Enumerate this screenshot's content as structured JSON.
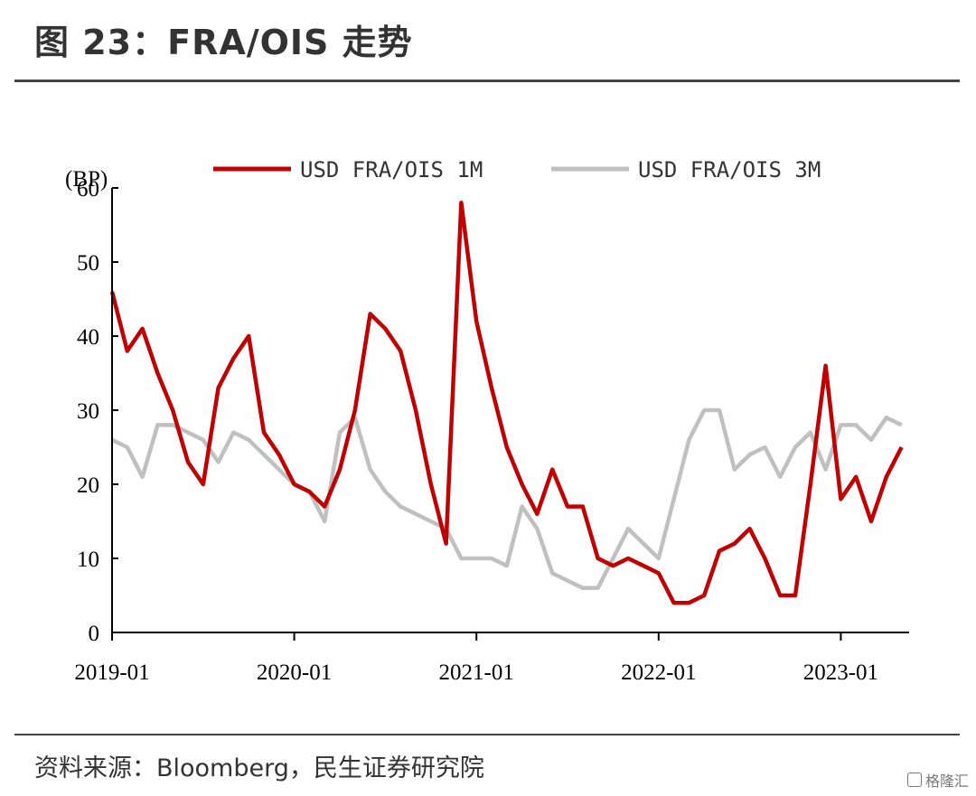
{
  "header": {
    "title": "图 23：FRA/OIS 走势"
  },
  "footer": {
    "source": "资料来源：Bloomberg，民生证券研究院",
    "watermark": "格隆汇"
  },
  "colors": {
    "series_1m": "#c00000",
    "series_3m": "#c0c0c0",
    "axis": "#000000"
  },
  "chart_data": {
    "type": "line",
    "ylabel": "(BP)",
    "ylim": [
      0,
      60
    ],
    "yticks": [
      0,
      10,
      20,
      30,
      40,
      50,
      60
    ],
    "xlim": [
      "2019-01",
      "2023-05"
    ],
    "xticks": [
      "2019-01",
      "2020-01",
      "2021-01",
      "2022-01",
      "2023-01"
    ],
    "legend_position": "top",
    "series": [
      {
        "name": "USD FRA/OIS 1M",
        "points": [
          [
            "2019-01",
            46
          ],
          [
            "2019-02",
            38
          ],
          [
            "2019-03",
            41
          ],
          [
            "2019-04",
            35
          ],
          [
            "2019-05",
            30
          ],
          [
            "2019-06",
            23
          ],
          [
            "2019-07",
            20
          ],
          [
            "2019-08",
            33
          ],
          [
            "2019-09",
            37
          ],
          [
            "2019-10",
            40
          ],
          [
            "2019-11",
            27
          ],
          [
            "2019-12",
            24
          ],
          [
            "2020-01",
            20
          ],
          [
            "2020-02",
            19
          ],
          [
            "2020-03",
            17
          ],
          [
            "2020-04",
            22
          ],
          [
            "2020-05",
            30
          ],
          [
            "2020-06",
            43
          ],
          [
            "2020-07",
            41
          ],
          [
            "2020-08",
            38
          ],
          [
            "2020-09",
            30
          ],
          [
            "2020-10",
            20
          ],
          [
            "2020-11",
            12
          ],
          [
            "2020-12",
            58
          ],
          [
            "2021-01",
            42
          ],
          [
            "2021-02",
            33
          ],
          [
            "2021-03",
            25
          ],
          [
            "2021-04",
            20
          ],
          [
            "2021-05",
            16
          ],
          [
            "2021-06",
            22
          ],
          [
            "2021-07",
            17
          ],
          [
            "2021-08",
            17
          ],
          [
            "2021-09",
            10
          ],
          [
            "2021-10",
            9
          ],
          [
            "2021-11",
            10
          ],
          [
            "2021-12",
            9
          ],
          [
            "2022-01",
            8
          ],
          [
            "2022-02",
            4
          ],
          [
            "2022-03",
            4
          ],
          [
            "2022-04",
            5
          ],
          [
            "2022-05",
            11
          ],
          [
            "2022-06",
            12
          ],
          [
            "2022-07",
            14
          ],
          [
            "2022-08",
            10
          ],
          [
            "2022-09",
            5
          ],
          [
            "2022-10",
            5
          ],
          [
            "2022-11",
            20
          ],
          [
            "2022-12",
            36
          ],
          [
            "2023-01",
            18
          ],
          [
            "2023-02",
            21
          ],
          [
            "2023-03",
            15
          ],
          [
            "2023-04",
            21
          ],
          [
            "2023-05",
            25
          ]
        ]
      },
      {
        "name": "USD FRA/OIS 3M",
        "points": [
          [
            "2019-01",
            26
          ],
          [
            "2019-02",
            25
          ],
          [
            "2019-03",
            21
          ],
          [
            "2019-04",
            28
          ],
          [
            "2019-05",
            28
          ],
          [
            "2019-06",
            27
          ],
          [
            "2019-07",
            26
          ],
          [
            "2019-08",
            23
          ],
          [
            "2019-09",
            27
          ],
          [
            "2019-10",
            26
          ],
          [
            "2019-11",
            24
          ],
          [
            "2019-12",
            22
          ],
          [
            "2020-01",
            20
          ],
          [
            "2020-02",
            19
          ],
          [
            "2020-03",
            15
          ],
          [
            "2020-04",
            27
          ],
          [
            "2020-05",
            29
          ],
          [
            "2020-06",
            22
          ],
          [
            "2020-07",
            19
          ],
          [
            "2020-08",
            17
          ],
          [
            "2020-09",
            16
          ],
          [
            "2020-10",
            15
          ],
          [
            "2020-11",
            14
          ],
          [
            "2020-12",
            10
          ],
          [
            "2021-01",
            10
          ],
          [
            "2021-02",
            10
          ],
          [
            "2021-03",
            9
          ],
          [
            "2021-04",
            17
          ],
          [
            "2021-05",
            14
          ],
          [
            "2021-06",
            8
          ],
          [
            "2021-07",
            7
          ],
          [
            "2021-08",
            6
          ],
          [
            "2021-09",
            6
          ],
          [
            "2021-10",
            10
          ],
          [
            "2021-11",
            14
          ],
          [
            "2021-12",
            12
          ],
          [
            "2022-01",
            10
          ],
          [
            "2022-02",
            18
          ],
          [
            "2022-03",
            26
          ],
          [
            "2022-04",
            30
          ],
          [
            "2022-05",
            30
          ],
          [
            "2022-06",
            22
          ],
          [
            "2022-07",
            24
          ],
          [
            "2022-08",
            25
          ],
          [
            "2022-09",
            21
          ],
          [
            "2022-10",
            25
          ],
          [
            "2022-11",
            27
          ],
          [
            "2022-12",
            22
          ],
          [
            "2023-01",
            28
          ],
          [
            "2023-02",
            28
          ],
          [
            "2023-03",
            26
          ],
          [
            "2023-04",
            29
          ],
          [
            "2023-05",
            28
          ]
        ]
      }
    ]
  }
}
